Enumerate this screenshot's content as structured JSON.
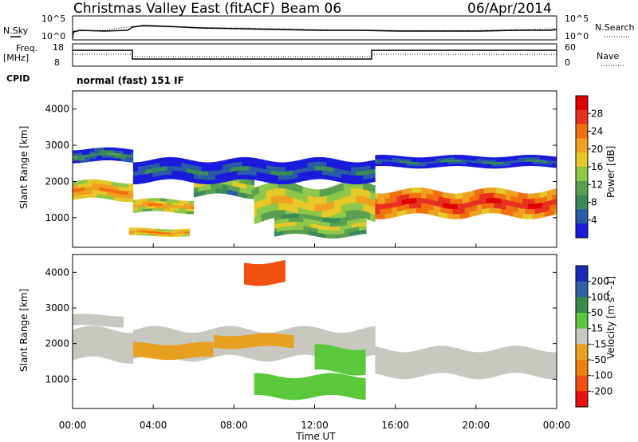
{
  "header": {
    "station": "Christmas Valley East (fitACF)",
    "beam": "Beam 06",
    "date": "06/Apr/2014"
  },
  "noise_panel": {
    "left_label": "N.Sky",
    "right_label": "N.Search",
    "ticks_left": [
      "10^5",
      "10^0"
    ],
    "ticks_right": [
      "10^5",
      "10^0"
    ]
  },
  "freq_panel": {
    "left_label_1": "Freq.",
    "left_label_2": "[MHz]",
    "right_label": "Nave",
    "ticks_left": [
      "18",
      "8"
    ],
    "ticks_right": [
      "60",
      "0"
    ]
  },
  "cpid_panel": {
    "label": "CPID",
    "mode": "normal (fast) 151 IF"
  },
  "colors": {
    "power": [
      "#1a1adc",
      "#2a5aa8",
      "#3a8a5a",
      "#5aa050",
      "#8ec84a",
      "#e6c828",
      "#f0a020",
      "#f07010",
      "#e83020",
      "#e00000"
    ],
    "velocity": [
      "#1a2ab8",
      "#3060a8",
      "#3a8a4a",
      "#5ac83a",
      "#c8c8c0",
      "#e8a020",
      "#f08010",
      "#f05010",
      "#e81010"
    ]
  },
  "chart_data": [
    {
      "type": "heatmap",
      "name": "power",
      "ylabel": "Slant Range [km]",
      "yticks": [
        "1000",
        "2000",
        "3000",
        "4000"
      ],
      "ylim": [
        180,
        4500
      ],
      "xlim": [
        0,
        24
      ],
      "colorbar_label": "Power [dB]",
      "colorbar_ticks": [
        "28",
        "24",
        "20",
        "16",
        "12",
        "8",
        "4"
      ],
      "colorbar_range": [
        0,
        30
      ],
      "echo_bands": [
        {
          "x0": 0.0,
          "x1": 3.0,
          "r0": 1500,
          "r1": 2000,
          "level": 22
        },
        {
          "x0": 3.0,
          "x1": 6.0,
          "r0": 1150,
          "r1": 1500,
          "level": 20
        },
        {
          "x0": 6.0,
          "x1": 9.0,
          "r0": 1600,
          "r1": 2250,
          "level": 14
        },
        {
          "x0": 9.0,
          "x1": 15.0,
          "r0": 900,
          "r1": 1900,
          "level": 18
        },
        {
          "x0": 15.0,
          "x1": 24.0,
          "r0": 1050,
          "r1": 1750,
          "level": 26
        },
        {
          "x0": 0.0,
          "x1": 3.0,
          "r0": 2550,
          "r1": 2900,
          "level": 8
        },
        {
          "x0": 3.0,
          "x1": 15.0,
          "r0": 2000,
          "r1": 2600,
          "level": 6
        },
        {
          "x0": 15.0,
          "x1": 24.0,
          "r0": 2400,
          "r1": 2700,
          "level": 6
        },
        {
          "x0": 10.0,
          "x1": 14.5,
          "r0": 500,
          "r1": 1050,
          "level": 16
        },
        {
          "x0": 2.8,
          "x1": 5.8,
          "r0": 500,
          "r1": 700,
          "level": 22
        }
      ]
    },
    {
      "type": "heatmap",
      "name": "velocity",
      "xlabel": "Time UT",
      "ylabel": "Slant Range [km]",
      "yticks": [
        "1000",
        "2000",
        "3000",
        "4000"
      ],
      "ylim": [
        180,
        4500
      ],
      "xlim": [
        0,
        24
      ],
      "xticks": [
        "00:00",
        "04:00",
        "08:00",
        "12:00",
        "16:00",
        "20:00",
        "00:00"
      ],
      "colorbar_label": "Velocity [m s^-1]",
      "colorbar_ticks": [
        "200",
        "100",
        "50",
        "15",
        "-15",
        "-50",
        "-100",
        "-200"
      ],
      "colorbar_range": [
        -250,
        250
      ],
      "echo_bands": [
        {
          "x0": 0.0,
          "x1": 3.0,
          "r0": 1550,
          "r1": 2400,
          "level": 0
        },
        {
          "x0": 3.0,
          "x1": 15.0,
          "r0": 1600,
          "r1": 2400,
          "level": 0
        },
        {
          "x0": 15.0,
          "x1": 24.0,
          "r0": 1100,
          "r1": 1850,
          "level": 0
        },
        {
          "x0": 3.0,
          "x1": 7.0,
          "r0": 1600,
          "r1": 2000,
          "level": -40
        },
        {
          "x0": 7.0,
          "x1": 11.0,
          "r0": 1900,
          "r1": 2250,
          "level": -45
        },
        {
          "x0": 9.0,
          "x1": 14.5,
          "r0": 500,
          "r1": 1100,
          "level": 45
        },
        {
          "x0": 12.0,
          "x1": 14.5,
          "r0": 1200,
          "r1": 1900,
          "level": 40
        },
        {
          "x0": 0.0,
          "x1": 2.5,
          "r0": 2500,
          "r1": 2800,
          "level": 0
        },
        {
          "x0": 8.5,
          "x1": 10.5,
          "r0": 3700,
          "r1": 4300,
          "level": -150
        }
      ]
    }
  ]
}
